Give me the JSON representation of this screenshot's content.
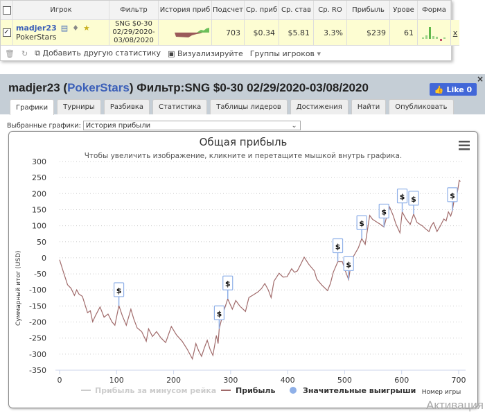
{
  "table": {
    "headers": [
      "Игрок",
      "Фильтр",
      "История приб",
      "Подсчет",
      "Ср. приб",
      "Ср. став",
      "Ср. RO",
      "Прибыль",
      "Урове",
      "Форма"
    ],
    "row": {
      "player": "madjer23",
      "network": "PokerStars",
      "filter": [
        "SNG $0-30",
        "02/29/2020-",
        "03/08/2020"
      ],
      "count": "703",
      "avg_profit": "$0.34",
      "avg_stake": "$5.81",
      "avg_roi": "3.3%",
      "profit": "$239",
      "level": "61",
      "remove": "x"
    },
    "toolbar": {
      "add_stat": "Добавить другую статистику",
      "visualize": "Визуализируйте",
      "groups": "Группы игроков"
    }
  },
  "panel": {
    "name": "madjer23",
    "network": "PokerStars",
    "filter": "Фильтр:SNG $0-30 02/29/2020-03/08/2020",
    "like": "Like 0",
    "close": "×",
    "tabs": [
      "Графики",
      "Турниры",
      "Разбивка",
      "Статистика",
      "Таблицы лидеров",
      "Достижения",
      "Найти",
      "Опубликовать"
    ],
    "selected_label": "Выбранные графики:",
    "selected_value": "История прибыли"
  },
  "colors": {
    "line": "#a06a6a",
    "marker": "#8fb0e8",
    "accent": "#3b5fb8"
  },
  "chart_data": {
    "type": "line",
    "title": "Общая прибыль",
    "subtitle": "Чтобы увеличить изображение, кликните и перетащите мышкой внутрь графика.",
    "xlabel": "Номер игры",
    "ylabel": "Суммарный итог (USD)",
    "xlim": [
      0,
      700
    ],
    "ylim": [
      -350,
      300
    ],
    "xticks": [
      0,
      100,
      200,
      300,
      400,
      500,
      600,
      700
    ],
    "yticks": [
      300,
      250,
      200,
      150,
      100,
      50,
      0,
      -50,
      -100,
      -150,
      -200,
      -250,
      -300,
      -350
    ],
    "series": [
      {
        "name": "Прибыль",
        "points": [
          [
            0,
            -6
          ],
          [
            6,
            -40
          ],
          [
            14,
            -84
          ],
          [
            20,
            -95
          ],
          [
            26,
            -117
          ],
          [
            30,
            -100
          ],
          [
            34,
            -113
          ],
          [
            40,
            -120
          ],
          [
            49,
            -171
          ],
          [
            54,
            -165
          ],
          [
            58,
            -199
          ],
          [
            63,
            -180
          ],
          [
            71,
            -153
          ],
          [
            78,
            -185
          ],
          [
            85,
            -175
          ],
          [
            92,
            -200
          ],
          [
            97,
            -210
          ],
          [
            104,
            -149
          ],
          [
            110,
            -180
          ],
          [
            117,
            -210
          ],
          [
            125,
            -160
          ],
          [
            130,
            -190
          ],
          [
            136,
            -218
          ],
          [
            144,
            -230
          ],
          [
            152,
            -260
          ],
          [
            156,
            -221
          ],
          [
            163,
            -245
          ],
          [
            170,
            -230
          ],
          [
            178,
            -250
          ],
          [
            186,
            -264
          ],
          [
            196,
            -214
          ],
          [
            205,
            -240
          ],
          [
            215,
            -260
          ],
          [
            224,
            -285
          ],
          [
            233,
            -315
          ],
          [
            239,
            -267
          ],
          [
            244,
            -290
          ],
          [
            249,
            -307
          ],
          [
            254,
            -280
          ],
          [
            259,
            -257
          ],
          [
            264,
            -285
          ],
          [
            269,
            -304
          ],
          [
            275,
            -242
          ],
          [
            278,
            -267
          ],
          [
            280,
            -221
          ],
          [
            287,
            -171
          ],
          [
            295,
            -128
          ],
          [
            303,
            -160
          ],
          [
            309,
            -133
          ],
          [
            316,
            -150
          ],
          [
            326,
            -167
          ],
          [
            332,
            -124
          ],
          [
            340,
            -115
          ],
          [
            348,
            -106
          ],
          [
            354,
            -96
          ],
          [
            360,
            -80
          ],
          [
            366,
            -100
          ],
          [
            371,
            -124
          ],
          [
            376,
            -73
          ],
          [
            385,
            -48
          ],
          [
            392,
            -60
          ],
          [
            399,
            -59
          ],
          [
            407,
            -34
          ],
          [
            412,
            -45
          ],
          [
            417,
            -41
          ],
          [
            423,
            -20
          ],
          [
            429,
            2
          ],
          [
            437,
            -20
          ],
          [
            447,
            -41
          ],
          [
            451,
            -66
          ],
          [
            460,
            -85
          ],
          [
            470,
            -102
          ],
          [
            475,
            -80
          ],
          [
            480,
            -45
          ],
          [
            488,
            -12
          ],
          [
            496,
            -12
          ],
          [
            501,
            -40
          ],
          [
            507,
            -68
          ],
          [
            511,
            -20
          ],
          [
            516,
            6
          ],
          [
            524,
            31
          ],
          [
            530,
            60
          ],
          [
            536,
            42
          ],
          [
            544,
            132
          ],
          [
            549,
            120
          ],
          [
            554,
            114
          ],
          [
            562,
            105
          ],
          [
            569,
            96
          ],
          [
            574,
            130
          ],
          [
            579,
            158
          ],
          [
            585,
            132
          ],
          [
            590,
            105
          ],
          [
            597,
            78
          ],
          [
            601,
            143
          ],
          [
            608,
            120
          ],
          [
            615,
            104
          ],
          [
            621,
            136
          ],
          [
            627,
            110
          ],
          [
            636,
            100
          ],
          [
            642,
            90
          ],
          [
            648,
            82
          ],
          [
            652,
            100
          ],
          [
            656,
            110
          ],
          [
            662,
            82
          ],
          [
            668,
            100
          ],
          [
            674,
            121
          ],
          [
            678,
            115
          ],
          [
            682,
            143
          ],
          [
            686,
            130
          ],
          [
            689,
            147
          ],
          [
            693,
            190
          ],
          [
            697,
            195
          ],
          [
            701,
            241
          ],
          [
            703,
            238
          ]
        ]
      }
    ],
    "big_wins": [
      [
        104,
        -149
      ],
      [
        280,
        -221
      ],
      [
        295,
        -128
      ],
      [
        488,
        -12
      ],
      [
        507,
        -68
      ],
      [
        530,
        60
      ],
      [
        569,
        96
      ],
      [
        601,
        143
      ],
      [
        621,
        136
      ],
      [
        689,
        147
      ]
    ],
    "big_win_label": "$",
    "legend": [
      "Прибыль за минусом рейка",
      "Прибыль",
      "Значительные выигрыши"
    ],
    "legend_placement": "bottom",
    "grid": true
  },
  "watermark": "Активация"
}
